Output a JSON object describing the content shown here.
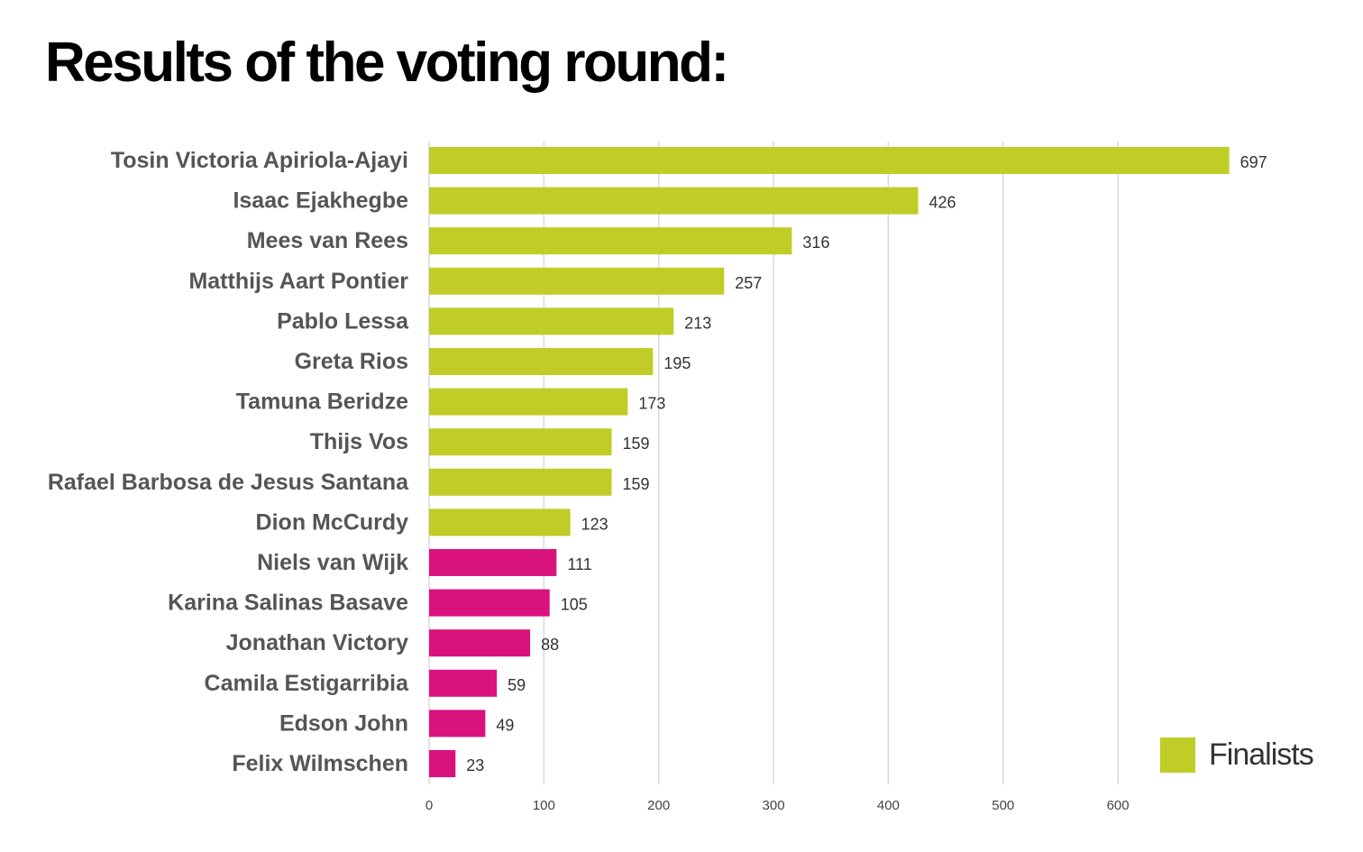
{
  "title": "Results of the voting round:",
  "colors": {
    "finalist": "#bfcd26",
    "non_finalist": "#d9127e",
    "grid": "#d9d9d9",
    "label": "#555555"
  },
  "legend": {
    "label": "Finalists",
    "color": "#bfcd26",
    "placement": "bottom-right"
  },
  "chart_data": {
    "type": "bar",
    "orientation": "horizontal",
    "title": "Results of the voting round:",
    "xlim": [
      0,
      700
    ],
    "xticks": [
      0,
      100,
      200,
      300,
      400,
      500,
      600
    ],
    "grid": true,
    "categories": [
      "Tosin Victoria Apiriola-Ajayi",
      "Isaac Ejakhegbe",
      "Mees van Rees",
      "Matthijs Aart Pontier",
      "Pablo Lessa",
      "Greta Rios",
      "Tamuna Beridze",
      "Thijs Vos",
      "Rafael Barbosa de Jesus Santana",
      "Dion McCurdy",
      "Niels van Wijk",
      "Karina Salinas Basave",
      "Jonathan Victory",
      "Camila Estigarribia",
      "Edson John",
      "Felix Wilmschen"
    ],
    "values": [
      697,
      426,
      316,
      257,
      213,
      195,
      173,
      159,
      159,
      123,
      111,
      105,
      88,
      59,
      49,
      23
    ],
    "finalist": [
      true,
      true,
      true,
      true,
      true,
      true,
      true,
      true,
      true,
      true,
      false,
      false,
      false,
      false,
      false,
      false
    ]
  }
}
